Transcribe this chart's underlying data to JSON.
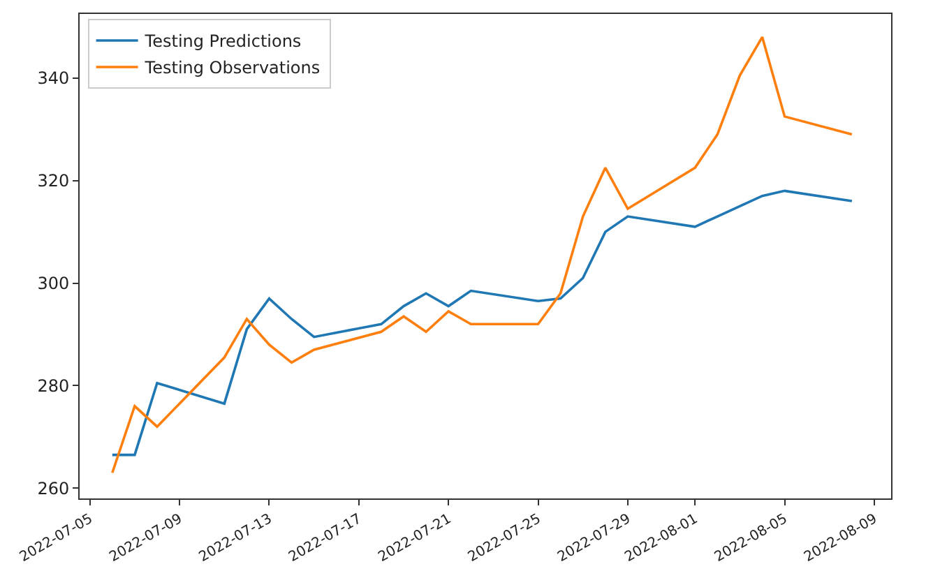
{
  "chart_data": {
    "type": "line",
    "x": [
      "2022-07-06",
      "2022-07-07",
      "2022-07-08",
      "2022-07-11",
      "2022-07-12",
      "2022-07-13",
      "2022-07-14",
      "2022-07-15",
      "2022-07-18",
      "2022-07-19",
      "2022-07-20",
      "2022-07-21",
      "2022-07-22",
      "2022-07-25",
      "2022-07-26",
      "2022-07-27",
      "2022-07-28",
      "2022-07-29",
      "2022-08-01",
      "2022-08-02",
      "2022-08-03",
      "2022-08-04",
      "2022-08-05",
      "2022-08-08"
    ],
    "series": [
      {
        "name": "Testing Predictions",
        "color": "#1f77b4",
        "values": [
          266.5,
          266.5,
          280.5,
          276.5,
          291,
          297,
          293,
          289.5,
          292,
          295.5,
          298,
          295.5,
          298.5,
          296.5,
          297,
          301,
          310,
          313,
          311,
          313,
          315,
          317,
          318,
          316
        ]
      },
      {
        "name": "Testing Observations",
        "color": "#ff7f0e",
        "values": [
          263,
          276,
          272,
          285.5,
          293,
          288,
          284.5,
          287,
          290.5,
          293.5,
          290.5,
          294.5,
          292,
          292,
          298,
          313,
          322.5,
          314.5,
          322.5,
          329,
          340.5,
          348,
          332.5,
          329
        ]
      }
    ],
    "xlim": [
      "2022-07-04T13:00",
      "2022-08-09T18:00"
    ],
    "xticks": [
      "2022-07-05",
      "2022-07-09",
      "2022-07-13",
      "2022-07-17",
      "2022-07-21",
      "2022-07-25",
      "2022-07-29",
      "2022-08-01",
      "2022-08-05",
      "2022-08-09"
    ],
    "ylim": [
      258,
      352.5
    ],
    "yticks": [
      260,
      280,
      300,
      320,
      340
    ],
    "legend": "top left"
  }
}
